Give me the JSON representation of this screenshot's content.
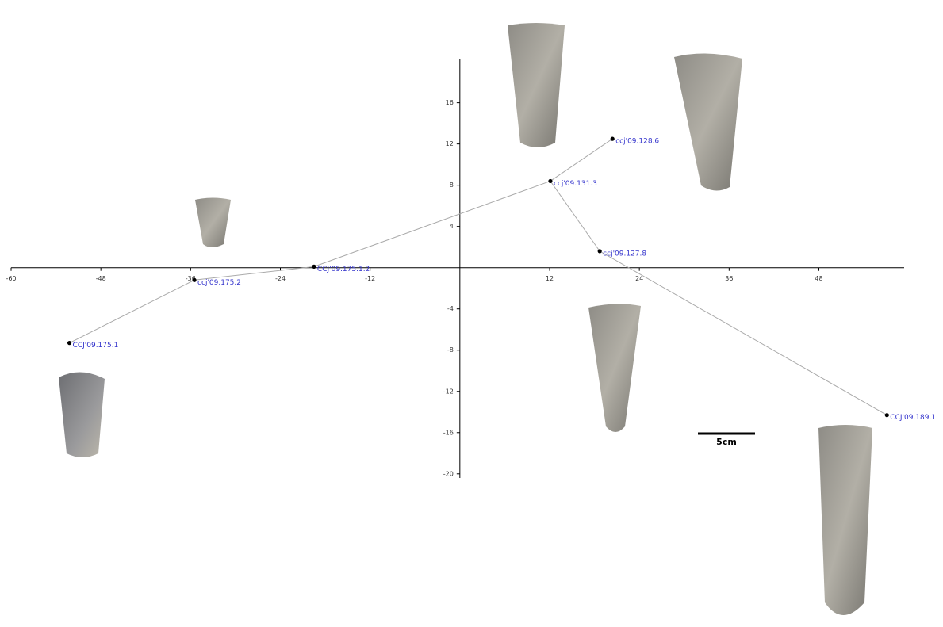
{
  "chart_data": {
    "type": "scatter",
    "labels": [
      "CCJ'09.175.1",
      "ccj'09.175.2",
      "CCJ'09.175.1.2",
      "ccj'09.131.3",
      "ccj'09.128.6",
      "ccj'09.127.8",
      "CCJ'09.189.1"
    ],
    "x": [
      -52.2,
      -35.5,
      -19.5,
      12.1,
      20.4,
      18.7,
      57.1
    ],
    "values": [
      -7.3,
      -1.2,
      0.1,
      8.4,
      12.5,
      1.6,
      -14.3
    ],
    "edges": [
      [
        0,
        1
      ],
      [
        1,
        2
      ],
      [
        2,
        3
      ],
      [
        3,
        4
      ],
      [
        3,
        5
      ],
      [
        5,
        6
      ]
    ],
    "color": "#000000",
    "label_color": "#3333cc",
    "line_color": "#aaaaaa",
    "xlim": [
      -60,
      59.4
    ],
    "ylim": [
      -20.4,
      20.2
    ],
    "xticks": [
      -60,
      -48,
      -36,
      -24,
      -12,
      12,
      24,
      36,
      48
    ],
    "yticks": [
      -20,
      -16,
      -12,
      -8,
      -4,
      4,
      8,
      12,
      16
    ],
    "scale_label": "5cm"
  }
}
